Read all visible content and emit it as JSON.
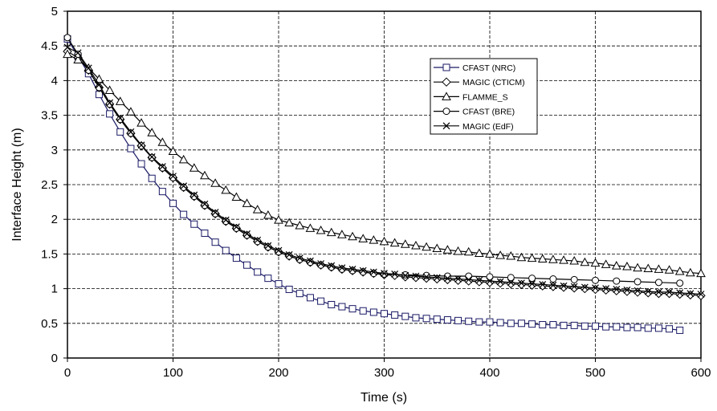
{
  "chart_data": {
    "type": "line",
    "title": "",
    "xlabel": "Time (s)",
    "ylabel": "Interface Height (m)",
    "xlim": [
      0,
      600
    ],
    "ylim": [
      0,
      5
    ],
    "x_ticks": [
      "0",
      "100",
      "200",
      "300",
      "400",
      "500",
      "600"
    ],
    "y_ticks": [
      "0",
      "0.5",
      "1",
      "1.5",
      "2",
      "2.5",
      "3",
      "3.5",
      "4",
      "4.5",
      "5"
    ],
    "grid": "both, dashed",
    "legend_position": "top-right inside plot",
    "series": [
      {
        "name": "CFAST (NRC)",
        "marker": "square",
        "color": "#1a1a66",
        "x": [
          0,
          10,
          20,
          30,
          40,
          50,
          60,
          70,
          80,
          90,
          100,
          110,
          120,
          130,
          140,
          150,
          160,
          170,
          180,
          190,
          200,
          210,
          220,
          230,
          240,
          250,
          260,
          270,
          280,
          290,
          300,
          310,
          320,
          330,
          340,
          350,
          360,
          370,
          380,
          390,
          400,
          410,
          420,
          430,
          440,
          450,
          460,
          470,
          480,
          490,
          500,
          510,
          520,
          530,
          540,
          550,
          560,
          570,
          580
        ],
        "y": [
          4.6,
          4.35,
          4.1,
          3.8,
          3.52,
          3.26,
          3.02,
          2.8,
          2.59,
          2.4,
          2.23,
          2.07,
          1.93,
          1.8,
          1.67,
          1.55,
          1.44,
          1.34,
          1.24,
          1.15,
          1.07,
          0.99,
          0.93,
          0.87,
          0.82,
          0.77,
          0.74,
          0.71,
          0.68,
          0.66,
          0.64,
          0.62,
          0.6,
          0.58,
          0.57,
          0.56,
          0.55,
          0.54,
          0.53,
          0.52,
          0.52,
          0.51,
          0.5,
          0.5,
          0.49,
          0.48,
          0.48,
          0.47,
          0.47,
          0.46,
          0.46,
          0.45,
          0.45,
          0.44,
          0.44,
          0.43,
          0.43,
          0.42,
          0.4
        ]
      },
      {
        "name": "MAGIC (CTICM)",
        "marker": "diamond",
        "color": "#000000",
        "x": [
          0,
          10,
          20,
          30,
          40,
          50,
          60,
          70,
          80,
          90,
          100,
          110,
          120,
          130,
          140,
          150,
          160,
          170,
          180,
          190,
          200,
          210,
          220,
          230,
          240,
          250,
          260,
          270,
          280,
          290,
          300,
          310,
          320,
          330,
          340,
          350,
          360,
          370,
          380,
          390,
          400,
          410,
          420,
          430,
          440,
          450,
          460,
          470,
          480,
          490,
          500,
          510,
          520,
          530,
          540,
          550,
          560,
          570,
          580,
          590,
          600
        ],
        "y": [
          4.42,
          4.33,
          4.15,
          3.9,
          3.66,
          3.44,
          3.24,
          3.06,
          2.89,
          2.74,
          2.6,
          2.46,
          2.33,
          2.2,
          2.08,
          1.97,
          1.87,
          1.77,
          1.68,
          1.6,
          1.53,
          1.47,
          1.42,
          1.38,
          1.34,
          1.31,
          1.28,
          1.26,
          1.24,
          1.22,
          1.2,
          1.19,
          1.17,
          1.16,
          1.15,
          1.14,
          1.13,
          1.12,
          1.11,
          1.1,
          1.09,
          1.08,
          1.07,
          1.06,
          1.05,
          1.04,
          1.03,
          1.02,
          1.01,
          1.0,
          0.99,
          0.98,
          0.97,
          0.96,
          0.95,
          0.94,
          0.93,
          0.93,
          0.92,
          0.91,
          0.9
        ]
      },
      {
        "name": "FLAMME_S",
        "marker": "triangle",
        "color": "#000000",
        "x": [
          0,
          10,
          20,
          30,
          40,
          50,
          60,
          70,
          80,
          90,
          100,
          110,
          120,
          130,
          140,
          150,
          160,
          170,
          180,
          190,
          200,
          210,
          220,
          230,
          240,
          250,
          260,
          270,
          280,
          290,
          300,
          310,
          320,
          330,
          340,
          350,
          360,
          370,
          380,
          390,
          400,
          410,
          420,
          430,
          440,
          450,
          460,
          470,
          480,
          490,
          500,
          510,
          520,
          530,
          540,
          550,
          560,
          570,
          580,
          590,
          600
        ],
        "y": [
          4.38,
          4.3,
          4.18,
          4.02,
          3.86,
          3.7,
          3.55,
          3.39,
          3.25,
          3.11,
          2.98,
          2.86,
          2.74,
          2.63,
          2.52,
          2.42,
          2.32,
          2.23,
          2.14,
          2.06,
          1.99,
          1.95,
          1.91,
          1.87,
          1.84,
          1.81,
          1.78,
          1.75,
          1.72,
          1.7,
          1.68,
          1.66,
          1.64,
          1.62,
          1.6,
          1.58,
          1.56,
          1.54,
          1.53,
          1.51,
          1.5,
          1.48,
          1.47,
          1.45,
          1.44,
          1.43,
          1.42,
          1.41,
          1.4,
          1.38,
          1.37,
          1.35,
          1.33,
          1.32,
          1.3,
          1.29,
          1.28,
          1.27,
          1.25,
          1.23,
          1.22
        ]
      },
      {
        "name": "CFAST (BRE)",
        "marker": "circle",
        "color": "#000000",
        "x": [
          0,
          10,
          20,
          30,
          40,
          50,
          60,
          70,
          80,
          90,
          100,
          110,
          120,
          130,
          140,
          150,
          160,
          170,
          180,
          190,
          200,
          210,
          220,
          230,
          240,
          250,
          260,
          270,
          280,
          290,
          300,
          320,
          340,
          360,
          380,
          400,
          420,
          440,
          460,
          480,
          500,
          520,
          540,
          560,
          580
        ],
        "y": [
          4.62,
          4.38,
          4.15,
          3.9,
          3.66,
          3.44,
          3.24,
          3.06,
          2.89,
          2.74,
          2.6,
          2.46,
          2.33,
          2.2,
          2.08,
          1.97,
          1.87,
          1.77,
          1.68,
          1.6,
          1.53,
          1.47,
          1.42,
          1.38,
          1.34,
          1.31,
          1.28,
          1.26,
          1.24,
          1.22,
          1.21,
          1.2,
          1.19,
          1.18,
          1.18,
          1.17,
          1.16,
          1.15,
          1.14,
          1.13,
          1.12,
          1.11,
          1.1,
          1.09,
          1.08
        ]
      },
      {
        "name": "MAGIC (EdF)",
        "marker": "x",
        "color": "#000000",
        "x": [
          0,
          10,
          20,
          30,
          40,
          50,
          60,
          70,
          80,
          90,
          100,
          110,
          120,
          130,
          140,
          150,
          160,
          170,
          180,
          190,
          200,
          210,
          220,
          230,
          240,
          250,
          260,
          270,
          280,
          290,
          300,
          310,
          320,
          330,
          340,
          350,
          360,
          370,
          380,
          390,
          400,
          410,
          420,
          430,
          440,
          450,
          460,
          470,
          480,
          490,
          500,
          510,
          520,
          530,
          540,
          550,
          560,
          570,
          580,
          590,
          600
        ],
        "y": [
          4.48,
          4.4,
          4.18,
          3.94,
          3.68,
          3.46,
          3.26,
          3.07,
          2.9,
          2.76,
          2.62,
          2.48,
          2.35,
          2.22,
          2.1,
          1.99,
          1.89,
          1.79,
          1.7,
          1.62,
          1.55,
          1.49,
          1.44,
          1.4,
          1.36,
          1.33,
          1.3,
          1.28,
          1.26,
          1.24,
          1.22,
          1.21,
          1.19,
          1.18,
          1.17,
          1.16,
          1.15,
          1.14,
          1.13,
          1.12,
          1.11,
          1.1,
          1.09,
          1.08,
          1.07,
          1.06,
          1.05,
          1.04,
          1.03,
          1.02,
          1.01,
          1.0,
          0.99,
          0.98,
          0.97,
          0.96,
          0.95,
          0.95,
          0.94,
          0.93,
          0.92
        ]
      }
    ]
  }
}
